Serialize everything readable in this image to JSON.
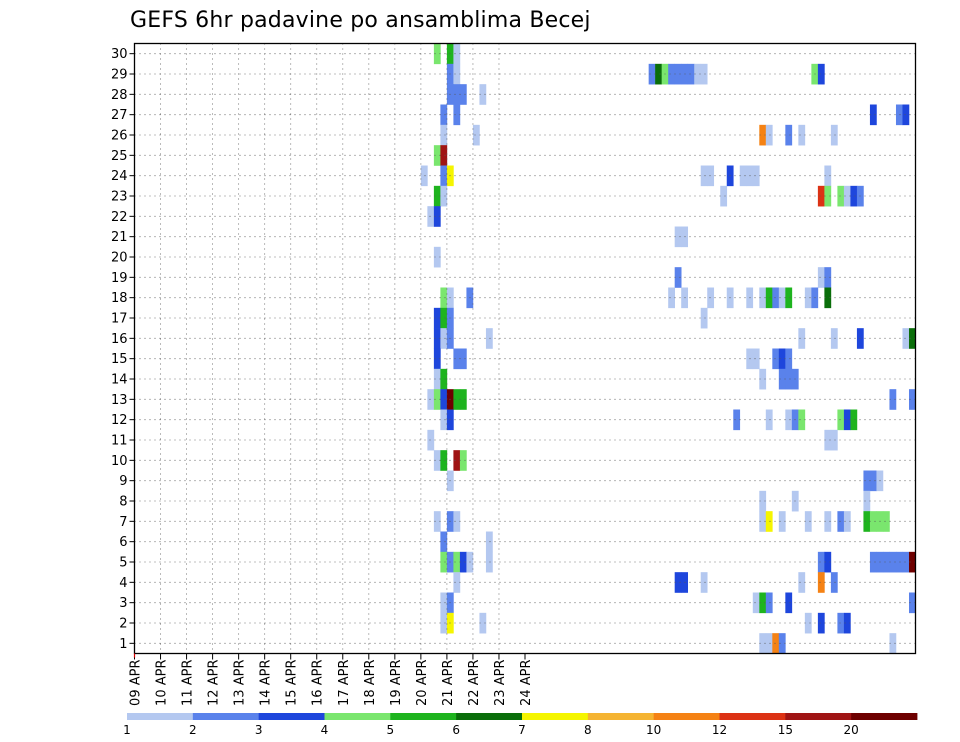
{
  "chart_data": {
    "type": "heatmap",
    "title": "GEFS 6hr padavine po ansamblima Becej",
    "xlabel": "",
    "ylabel": "",
    "x_tick_labels": [
      "09 APR",
      "10 APR",
      "11 APR",
      "12 APR",
      "13 APR",
      "14 APR",
      "15 APR",
      "16 APR",
      "17 APR",
      "18 APR",
      "19 APR",
      "20 APR",
      "21 APR",
      "22 APR",
      "23 APR",
      "24 APR"
    ],
    "x_unit": "6-hour step (4 steps per day), starting 09 APR 00",
    "y_tick_labels": [
      "1",
      "2",
      "3",
      "4",
      "5",
      "6",
      "7",
      "8",
      "9",
      "10",
      "11",
      "12",
      "13",
      "14",
      "15",
      "16",
      "17",
      "18",
      "19",
      "20",
      "21",
      "22",
      "23",
      "24",
      "25",
      "26",
      "27",
      "28",
      "29",
      "30"
    ],
    "ylim": [
      0,
      30
    ],
    "grid": true,
    "colorbar": {
      "labels": [
        "1",
        "2",
        "3",
        "4",
        "5",
        "6",
        "7",
        "8",
        "10",
        "12",
        "15",
        "20"
      ],
      "colors": [
        "#b4c8f0",
        "#5a82eb",
        "#1e46dc",
        "#7ae66e",
        "#1eb41e",
        "#0a6e0a",
        "#f5f500",
        "#f5b432",
        "#f58214",
        "#dc3214",
        "#a01414",
        "#6e0000"
      ]
    },
    "cells": [
      {
        "m": 30,
        "s": 46,
        "v": 4
      },
      {
        "m": 30,
        "s": 48,
        "v": 5
      },
      {
        "m": 30,
        "s": 49,
        "v": 1
      },
      {
        "m": 29,
        "s": 48,
        "v": 2
      },
      {
        "m": 29,
        "s": 49,
        "v": 1
      },
      {
        "m": 29,
        "s": 79,
        "v": 2
      },
      {
        "m": 29,
        "s": 80,
        "v": 6
      },
      {
        "m": 29,
        "s": 81,
        "v": 4
      },
      {
        "m": 29,
        "s": 82,
        "v": 2
      },
      {
        "m": 29,
        "s": 83,
        "v": 2
      },
      {
        "m": 29,
        "s": 84,
        "v": 2
      },
      {
        "m": 29,
        "s": 85,
        "v": 2
      },
      {
        "m": 29,
        "s": 86,
        "v": 1
      },
      {
        "m": 29,
        "s": 87,
        "v": 1
      },
      {
        "m": 29,
        "s": 104,
        "v": 4
      },
      {
        "m": 29,
        "s": 105,
        "v": 3
      },
      {
        "m": 28,
        "s": 48,
        "v": 2
      },
      {
        "m": 28,
        "s": 49,
        "v": 2
      },
      {
        "m": 28,
        "s": 50,
        "v": 2
      },
      {
        "m": 28,
        "s": 53,
        "v": 1
      },
      {
        "m": 27,
        "s": 47,
        "v": 2
      },
      {
        "m": 27,
        "s": 49,
        "v": 2
      },
      {
        "m": 27,
        "s": 113,
        "v": 3
      },
      {
        "m": 27,
        "s": 117,
        "v": 2
      },
      {
        "m": 27,
        "s": 118,
        "v": 3
      },
      {
        "m": 26,
        "s": 47,
        "v": 1
      },
      {
        "m": 26,
        "s": 52,
        "v": 1
      },
      {
        "m": 26,
        "s": 96,
        "v": 9
      },
      {
        "m": 26,
        "s": 97,
        "v": 1
      },
      {
        "m": 26,
        "s": 100,
        "v": 2
      },
      {
        "m": 26,
        "s": 102,
        "v": 1
      },
      {
        "m": 26,
        "s": 107,
        "v": 1
      },
      {
        "m": 25,
        "s": 46,
        "v": 4
      },
      {
        "m": 25,
        "s": 47,
        "v": 11
      },
      {
        "m": 24,
        "s": 44,
        "v": 1
      },
      {
        "m": 24,
        "s": 47,
        "v": 2
      },
      {
        "m": 24,
        "s": 48,
        "v": 7
      },
      {
        "m": 24,
        "s": 87,
        "v": 1
      },
      {
        "m": 24,
        "s": 88,
        "v": 1
      },
      {
        "m": 24,
        "s": 91,
        "v": 3
      },
      {
        "m": 24,
        "s": 93,
        "v": 1
      },
      {
        "m": 24,
        "s": 94,
        "v": 1
      },
      {
        "m": 24,
        "s": 95,
        "v": 1
      },
      {
        "m": 24,
        "s": 106,
        "v": 1
      },
      {
        "m": 23,
        "s": 46,
        "v": 5
      },
      {
        "m": 23,
        "s": 47,
        "v": 1
      },
      {
        "m": 23,
        "s": 90,
        "v": 1
      },
      {
        "m": 23,
        "s": 105,
        "v": 10
      },
      {
        "m": 23,
        "s": 106,
        "v": 4
      },
      {
        "m": 23,
        "s": 108,
        "v": 4
      },
      {
        "m": 23,
        "s": 109,
        "v": 1
      },
      {
        "m": 23,
        "s": 110,
        "v": 3
      },
      {
        "m": 23,
        "s": 111,
        "v": 2
      },
      {
        "m": 22,
        "s": 45,
        "v": 1
      },
      {
        "m": 22,
        "s": 46,
        "v": 3
      },
      {
        "m": 21,
        "s": 83,
        "v": 1
      },
      {
        "m": 21,
        "s": 84,
        "v": 1
      },
      {
        "m": 20,
        "s": 46,
        "v": 1
      },
      {
        "m": 19,
        "s": 83,
        "v": 2
      },
      {
        "m": 19,
        "s": 105,
        "v": 1
      },
      {
        "m": 19,
        "s": 106,
        "v": 2
      },
      {
        "m": 18,
        "s": 47,
        "v": 4
      },
      {
        "m": 18,
        "s": 48,
        "v": 1
      },
      {
        "m": 18,
        "s": 51,
        "v": 2
      },
      {
        "m": 18,
        "s": 82,
        "v": 1
      },
      {
        "m": 18,
        "s": 84,
        "v": 1
      },
      {
        "m": 18,
        "s": 88,
        "v": 1
      },
      {
        "m": 18,
        "s": 91,
        "v": 1
      },
      {
        "m": 18,
        "s": 94,
        "v": 1
      },
      {
        "m": 18,
        "s": 96,
        "v": 1
      },
      {
        "m": 18,
        "s": 97,
        "v": 5
      },
      {
        "m": 18,
        "s": 98,
        "v": 2
      },
      {
        "m": 18,
        "s": 99,
        "v": 1
      },
      {
        "m": 18,
        "s": 100,
        "v": 5
      },
      {
        "m": 18,
        "s": 103,
        "v": 1
      },
      {
        "m": 18,
        "s": 104,
        "v": 2
      },
      {
        "m": 18,
        "s": 106,
        "v": 6
      },
      {
        "m": 17,
        "s": 46,
        "v": 3
      },
      {
        "m": 17,
        "s": 47,
        "v": 5
      },
      {
        "m": 17,
        "s": 48,
        "v": 2
      },
      {
        "m": 17,
        "s": 87,
        "v": 1
      },
      {
        "m": 16,
        "s": 46,
        "v": 3
      },
      {
        "m": 16,
        "s": 47,
        "v": 1
      },
      {
        "m": 16,
        "s": 48,
        "v": 2
      },
      {
        "m": 16,
        "s": 54,
        "v": 1
      },
      {
        "m": 16,
        "s": 102,
        "v": 1
      },
      {
        "m": 16,
        "s": 107,
        "v": 1
      },
      {
        "m": 16,
        "s": 111,
        "v": 3
      },
      {
        "m": 16,
        "s": 118,
        "v": 1
      },
      {
        "m": 16,
        "s": 119,
        "v": 6
      },
      {
        "m": 15,
        "s": 46,
        "v": 3
      },
      {
        "m": 15,
        "s": 49,
        "v": 2
      },
      {
        "m": 15,
        "s": 50,
        "v": 2
      },
      {
        "m": 15,
        "s": 94,
        "v": 1
      },
      {
        "m": 15,
        "s": 95,
        "v": 1
      },
      {
        "m": 15,
        "s": 98,
        "v": 2
      },
      {
        "m": 15,
        "s": 99,
        "v": 3
      },
      {
        "m": 15,
        "s": 100,
        "v": 2
      },
      {
        "m": 14,
        "s": 46,
        "v": 1
      },
      {
        "m": 14,
        "s": 47,
        "v": 5
      },
      {
        "m": 14,
        "s": 96,
        "v": 1
      },
      {
        "m": 14,
        "s": 99,
        "v": 2
      },
      {
        "m": 14,
        "s": 100,
        "v": 2
      },
      {
        "m": 14,
        "s": 101,
        "v": 2
      },
      {
        "m": 13,
        "s": 45,
        "v": 1
      },
      {
        "m": 13,
        "s": 46,
        "v": 4
      },
      {
        "m": 13,
        "s": 47,
        "v": 3
      },
      {
        "m": 13,
        "s": 48,
        "v": 12
      },
      {
        "m": 13,
        "s": 49,
        "v": 5
      },
      {
        "m": 13,
        "s": 50,
        "v": 5
      },
      {
        "m": 13,
        "s": 116,
        "v": 2
      },
      {
        "m": 13,
        "s": 119,
        "v": 2
      },
      {
        "m": 12,
        "s": 47,
        "v": 1
      },
      {
        "m": 12,
        "s": 48,
        "v": 3
      },
      {
        "m": 12,
        "s": 92,
        "v": 2
      },
      {
        "m": 12,
        "s": 97,
        "v": 1
      },
      {
        "m": 12,
        "s": 100,
        "v": 1
      },
      {
        "m": 12,
        "s": 101,
        "v": 2
      },
      {
        "m": 12,
        "s": 102,
        "v": 4
      },
      {
        "m": 12,
        "s": 108,
        "v": 4
      },
      {
        "m": 12,
        "s": 109,
        "v": 3
      },
      {
        "m": 12,
        "s": 110,
        "v": 5
      },
      {
        "m": 11,
        "s": 45,
        "v": 1
      },
      {
        "m": 11,
        "s": 106,
        "v": 1
      },
      {
        "m": 11,
        "s": 107,
        "v": 1
      },
      {
        "m": 10,
        "s": 46,
        "v": 1
      },
      {
        "m": 10,
        "s": 47,
        "v": 5
      },
      {
        "m": 10,
        "s": 49,
        "v": 11
      },
      {
        "m": 10,
        "s": 50,
        "v": 4
      },
      {
        "m": 9,
        "s": 48,
        "v": 1
      },
      {
        "m": 9,
        "s": 112,
        "v": 2
      },
      {
        "m": 9,
        "s": 113,
        "v": 2
      },
      {
        "m": 9,
        "s": 114,
        "v": 1
      },
      {
        "m": 8,
        "s": 96,
        "v": 1
      },
      {
        "m": 8,
        "s": 101,
        "v": 1
      },
      {
        "m": 8,
        "s": 112,
        "v": 1
      },
      {
        "m": 7,
        "s": 46,
        "v": 1
      },
      {
        "m": 7,
        "s": 48,
        "v": 2
      },
      {
        "m": 7,
        "s": 49,
        "v": 1
      },
      {
        "m": 7,
        "s": 96,
        "v": 1
      },
      {
        "m": 7,
        "s": 97,
        "v": 7
      },
      {
        "m": 7,
        "s": 99,
        "v": 1
      },
      {
        "m": 7,
        "s": 103,
        "v": 1
      },
      {
        "m": 7,
        "s": 106,
        "v": 1
      },
      {
        "m": 7,
        "s": 108,
        "v": 2
      },
      {
        "m": 7,
        "s": 109,
        "v": 1
      },
      {
        "m": 7,
        "s": 112,
        "v": 5
      },
      {
        "m": 7,
        "s": 113,
        "v": 4
      },
      {
        "m": 7,
        "s": 114,
        "v": 4
      },
      {
        "m": 7,
        "s": 115,
        "v": 4
      },
      {
        "m": 6,
        "s": 47,
        "v": 2
      },
      {
        "m": 6,
        "s": 54,
        "v": 1
      },
      {
        "m": 5,
        "s": 47,
        "v": 4
      },
      {
        "m": 5,
        "s": 48,
        "v": 2
      },
      {
        "m": 5,
        "s": 49,
        "v": 4
      },
      {
        "m": 5,
        "s": 50,
        "v": 3
      },
      {
        "m": 5,
        "s": 51,
        "v": 1
      },
      {
        "m": 5,
        "s": 54,
        "v": 1
      },
      {
        "m": 5,
        "s": 105,
        "v": 2
      },
      {
        "m": 5,
        "s": 106,
        "v": 3
      },
      {
        "m": 5,
        "s": 113,
        "v": 2
      },
      {
        "m": 5,
        "s": 114,
        "v": 2
      },
      {
        "m": 5,
        "s": 115,
        "v": 2
      },
      {
        "m": 5,
        "s": 116,
        "v": 2
      },
      {
        "m": 5,
        "s": 117,
        "v": 2
      },
      {
        "m": 5,
        "s": 118,
        "v": 2
      },
      {
        "m": 5,
        "s": 119,
        "v": 12
      },
      {
        "m": 4,
        "s": 49,
        "v": 1
      },
      {
        "m": 4,
        "s": 83,
        "v": 3
      },
      {
        "m": 4,
        "s": 84,
        "v": 3
      },
      {
        "m": 4,
        "s": 87,
        "v": 1
      },
      {
        "m": 4,
        "s": 102,
        "v": 1
      },
      {
        "m": 4,
        "s": 105,
        "v": 9
      },
      {
        "m": 4,
        "s": 107,
        "v": 2
      },
      {
        "m": 3,
        "s": 47,
        "v": 1
      },
      {
        "m": 3,
        "s": 48,
        "v": 2
      },
      {
        "m": 3,
        "s": 95,
        "v": 1
      },
      {
        "m": 3,
        "s": 96,
        "v": 5
      },
      {
        "m": 3,
        "s": 97,
        "v": 2
      },
      {
        "m": 3,
        "s": 100,
        "v": 3
      },
      {
        "m": 3,
        "s": 119,
        "v": 2
      },
      {
        "m": 2,
        "s": 47,
        "v": 1
      },
      {
        "m": 2,
        "s": 48,
        "v": 7
      },
      {
        "m": 2,
        "s": 53,
        "v": 1
      },
      {
        "m": 2,
        "s": 103,
        "v": 1
      },
      {
        "m": 2,
        "s": 105,
        "v": 3
      },
      {
        "m": 2,
        "s": 108,
        "v": 2
      },
      {
        "m": 2,
        "s": 109,
        "v": 3
      },
      {
        "m": 1,
        "s": 96,
        "v": 1
      },
      {
        "m": 1,
        "s": 97,
        "v": 1
      },
      {
        "m": 1,
        "s": 98,
        "v": 9
      },
      {
        "m": 1,
        "s": 99,
        "v": 2
      },
      {
        "m": 1,
        "s": 116,
        "v": 1
      }
    ]
  }
}
